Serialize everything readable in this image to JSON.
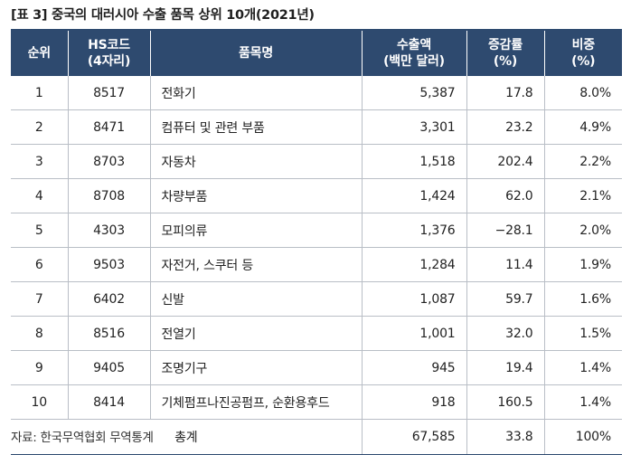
{
  "title": "[표 3] 중국의 대러시아 수출 품목 상위 10개(2021년)",
  "headers": {
    "rank": "순위",
    "hs_line1": "HS코드",
    "hs_line2": "(4자리)",
    "name": "품목명",
    "export_line1": "수출액",
    "export_line2": "(백만 달러)",
    "growth_line1": "증감률",
    "growth_line2": "(%)",
    "share_line1": "비중",
    "share_line2": "(%)"
  },
  "rows": [
    {
      "rank": "1",
      "hs": "8517",
      "name": "전화기",
      "export": "5,387",
      "growth": "17.8",
      "share": "8.0%"
    },
    {
      "rank": "2",
      "hs": "8471",
      "name": "컴퓨터 및 관련 부품",
      "export": "3,301",
      "growth": "23.2",
      "share": "4.9%"
    },
    {
      "rank": "3",
      "hs": "8703",
      "name": "자동차",
      "export": "1,518",
      "growth": "202.4",
      "share": "2.2%"
    },
    {
      "rank": "4",
      "hs": "8708",
      "name": "차량부품",
      "export": "1,424",
      "growth": "62.0",
      "share": "2.1%"
    },
    {
      "rank": "5",
      "hs": "4303",
      "name": "모피의류",
      "export": "1,376",
      "growth": "−28.1",
      "share": "2.0%"
    },
    {
      "rank": "6",
      "hs": "9503",
      "name": "자전거, 스쿠터 등",
      "export": "1,284",
      "growth": "11.4",
      "share": "1.9%"
    },
    {
      "rank": "7",
      "hs": "6402",
      "name": "신발",
      "export": "1,087",
      "growth": "59.7",
      "share": "1.6%"
    },
    {
      "rank": "8",
      "hs": "8516",
      "name": "전열기",
      "export": "1,001",
      "growth": "32.0",
      "share": "1.5%"
    },
    {
      "rank": "9",
      "hs": "9405",
      "name": "조명기구",
      "export": "945",
      "growth": "19.4",
      "share": "1.4%"
    },
    {
      "rank": "10",
      "hs": "8414",
      "name": "기체펌프나진공펌프, 순환용후드",
      "export": "918",
      "growth": "160.5",
      "share": "1.4%"
    }
  ],
  "total": {
    "label": "총계",
    "export": "67,585",
    "growth": "33.8",
    "share": "100%"
  },
  "source": "자료: 한국무역협회 무역통계",
  "colors": {
    "header_bg": "#2e4a6f",
    "header_text": "#ffffff",
    "grid": "#b9bec6"
  }
}
